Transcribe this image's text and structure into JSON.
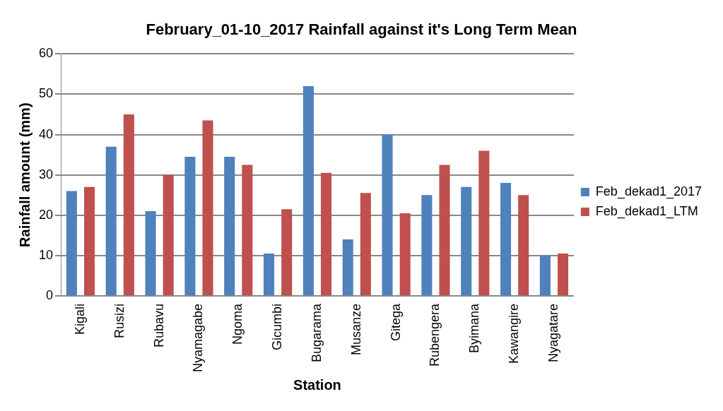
{
  "chart_data": {
    "type": "bar",
    "title": "February_01-10_2017 Rainfall against it's Long Term Mean",
    "xlabel": "Station",
    "ylabel": "Rainfall amount (mm)",
    "categories": [
      "Kigali",
      "Rusizi",
      "Rubavu",
      "Nyamagabe",
      "Ngoma",
      "Gicumbi",
      "Bugarama",
      "Musanze",
      "Gitega",
      "Rubengera",
      "Byimana",
      "Kawangire",
      "Nyagatare"
    ],
    "series": [
      {
        "name": "Feb_dekad1_2017",
        "color": "#4f81bd",
        "values": [
          26,
          37,
          21,
          34.5,
          34.5,
          10.5,
          52,
          14,
          40,
          25,
          27,
          28,
          10
        ]
      },
      {
        "name": "Feb_dekad1_LTM",
        "color": "#c0504d",
        "values": [
          27,
          45,
          30,
          43.5,
          32.5,
          21.5,
          30.5,
          25.5,
          20.5,
          32.5,
          36,
          25,
          10.5
        ]
      }
    ],
    "ylim": [
      0,
      60
    ],
    "yticks": [
      0,
      10,
      20,
      30,
      40,
      50,
      60
    ],
    "grid": "y",
    "legend": "right"
  }
}
